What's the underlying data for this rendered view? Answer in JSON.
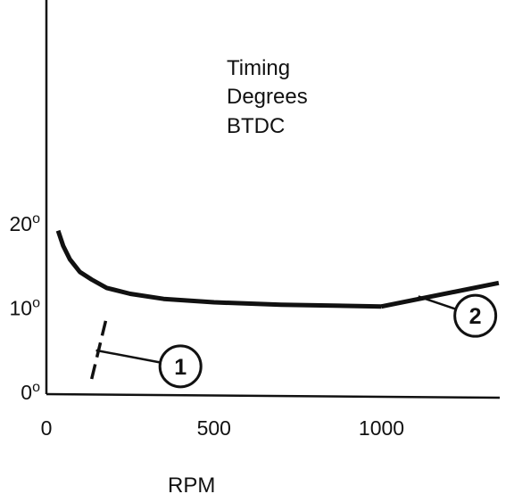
{
  "chart_data": {
    "type": "line",
    "title_lines": [
      "Timing",
      "Degrees",
      "BTDC"
    ],
    "xlabel": "RPM",
    "ylabel": "",
    "xlim": [
      0,
      1350
    ],
    "ylim": [
      0,
      25
    ],
    "x_ticks": [
      {
        "value": 0,
        "label": "0"
      },
      {
        "value": 500,
        "label": "500"
      },
      {
        "value": 1000,
        "label": "1000"
      }
    ],
    "y_ticks": [
      {
        "value": 0,
        "base": "0",
        "sup": "o"
      },
      {
        "value": 10,
        "base": "10",
        "sup": "o"
      },
      {
        "value": 20,
        "base": "20",
        "sup": "o"
      }
    ],
    "series": [
      {
        "style": "solid",
        "points": [
          [
            35,
            19.4
          ],
          [
            50,
            17.6
          ],
          [
            70,
            16.0
          ],
          [
            100,
            14.5
          ],
          [
            135,
            13.6
          ],
          [
            180,
            12.6
          ],
          [
            250,
            11.9
          ],
          [
            350,
            11.3
          ],
          [
            500,
            10.9
          ],
          [
            700,
            10.6
          ],
          [
            1000,
            10.4
          ]
        ]
      },
      {
        "style": "solid",
        "points": [
          [
            1000,
            10.4
          ],
          [
            1350,
            13.2
          ]
        ]
      },
      {
        "style": "dashed",
        "points": [
          [
            135,
            1.8
          ],
          [
            180,
            9.2
          ]
        ]
      }
    ],
    "annotations": [
      {
        "label": "1",
        "target": [
          148,
          5.2
        ],
        "at": [
          400,
          3.3
        ]
      },
      {
        "label": "2",
        "target": [
          1110,
          11.6
        ],
        "at": [
          1280,
          9.3
        ]
      }
    ],
    "grid": false,
    "legend": "none"
  }
}
